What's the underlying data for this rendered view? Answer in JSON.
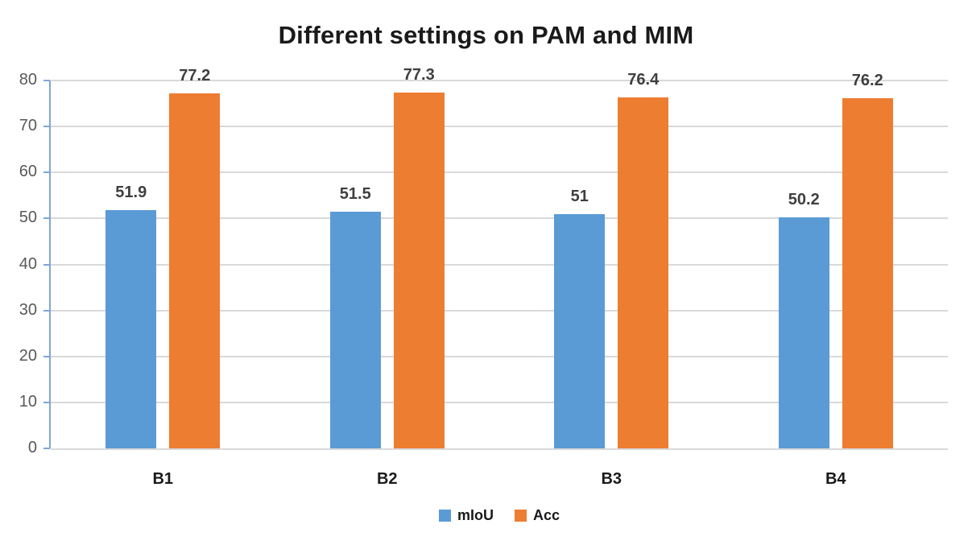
{
  "chart_data": {
    "type": "bar",
    "title": "Different settings on PAM and MIM",
    "categories": [
      "B1",
      "B2",
      "B3",
      "B4"
    ],
    "series": [
      {
        "name": "mIoU",
        "color": "#5B9BD5",
        "values": [
          51.9,
          51.5,
          51,
          50.2
        ]
      },
      {
        "name": "Acc",
        "color": "#ED7D31",
        "values": [
          77.2,
          77.3,
          76.4,
          76.2
        ]
      }
    ],
    "xlabel": "",
    "ylabel": "",
    "ylim": [
      0,
      80
    ],
    "yticks": [
      0,
      10,
      20,
      30,
      40,
      50,
      60,
      70,
      80
    ],
    "grid": "horizontal",
    "legend_position": "bottom",
    "data_labels": true
  },
  "styles": {
    "title_color": "#1A1A1A",
    "gridline_color": "#D9D9D9",
    "axis_line_color": "#7EA6D8",
    "ytick_label_color": "#595959",
    "data_label_color": "#3F3F3F",
    "xtick_label_color": "#1A1A1A"
  }
}
